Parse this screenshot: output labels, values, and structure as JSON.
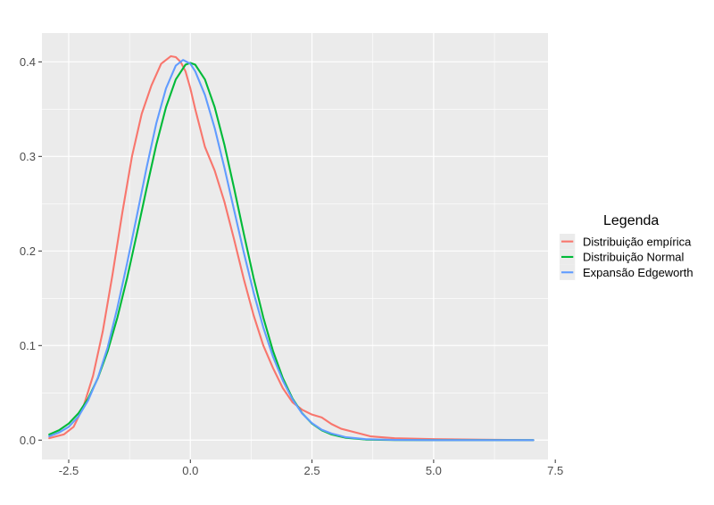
{
  "chart_data": {
    "type": "line",
    "title": "",
    "xlabel": "",
    "ylabel": "",
    "xlim": [
      -3.05,
      7.35
    ],
    "ylim": [
      -0.0205,
      0.4305
    ],
    "x_ticks": [
      -2.5,
      0.0,
      2.5,
      5.0,
      7.5
    ],
    "x_tick_labels": [
      "-2.5",
      "0.0",
      "2.5",
      "5.0",
      "7.5"
    ],
    "y_ticks": [
      0.0,
      0.1,
      0.2,
      0.3,
      0.4
    ],
    "y_tick_labels": [
      "0.0",
      "0.1",
      "0.2",
      "0.3",
      "0.4"
    ],
    "grid": true,
    "legend": {
      "title": "Legenda",
      "position": "right"
    },
    "series": [
      {
        "name": "Distribuição empírica",
        "color": "#F8766D",
        "points": [
          [
            -2.9,
            0.002
          ],
          [
            -2.6,
            0.006
          ],
          [
            -2.4,
            0.014
          ],
          [
            -2.2,
            0.035
          ],
          [
            -2.0,
            0.068
          ],
          [
            -1.8,
            0.115
          ],
          [
            -1.6,
            0.175
          ],
          [
            -1.4,
            0.24
          ],
          [
            -1.2,
            0.3
          ],
          [
            -1.0,
            0.345
          ],
          [
            -0.8,
            0.375
          ],
          [
            -0.6,
            0.398
          ],
          [
            -0.4,
            0.406
          ],
          [
            -0.3,
            0.405
          ],
          [
            -0.2,
            0.4
          ],
          [
            -0.1,
            0.39
          ],
          [
            0.0,
            0.372
          ],
          [
            0.1,
            0.35
          ],
          [
            0.2,
            0.33
          ],
          [
            0.3,
            0.31
          ],
          [
            0.5,
            0.285
          ],
          [
            0.7,
            0.252
          ],
          [
            0.9,
            0.212
          ],
          [
            1.1,
            0.17
          ],
          [
            1.3,
            0.132
          ],
          [
            1.5,
            0.1
          ],
          [
            1.7,
            0.076
          ],
          [
            1.9,
            0.055
          ],
          [
            2.1,
            0.04
          ],
          [
            2.3,
            0.032
          ],
          [
            2.5,
            0.027
          ],
          [
            2.7,
            0.024
          ],
          [
            2.9,
            0.017
          ],
          [
            3.1,
            0.012
          ],
          [
            3.4,
            0.008
          ],
          [
            3.7,
            0.004
          ],
          [
            4.2,
            0.002
          ],
          [
            5.0,
            0.001
          ],
          [
            6.0,
            0.0005
          ],
          [
            7.05,
            0.0
          ]
        ]
      },
      {
        "name": "Distribuição Normal",
        "color": "#00BA38",
        "points": [
          [
            -2.9,
            0.006
          ],
          [
            -2.7,
            0.0104
          ],
          [
            -2.5,
            0.0175
          ],
          [
            -2.3,
            0.0283
          ],
          [
            -2.1,
            0.044
          ],
          [
            -1.9,
            0.0656
          ],
          [
            -1.7,
            0.094
          ],
          [
            -1.5,
            0.1295
          ],
          [
            -1.3,
            0.1714
          ],
          [
            -1.1,
            0.2179
          ],
          [
            -0.9,
            0.2661
          ],
          [
            -0.7,
            0.3123
          ],
          [
            -0.5,
            0.3521
          ],
          [
            -0.3,
            0.3814
          ],
          [
            -0.1,
            0.397
          ],
          [
            0.0,
            0.3989
          ],
          [
            0.1,
            0.397
          ],
          [
            0.3,
            0.3814
          ],
          [
            0.5,
            0.3521
          ],
          [
            0.7,
            0.3123
          ],
          [
            0.9,
            0.2661
          ],
          [
            1.1,
            0.2179
          ],
          [
            1.3,
            0.1714
          ],
          [
            1.5,
            0.1295
          ],
          [
            1.7,
            0.094
          ],
          [
            1.9,
            0.0656
          ],
          [
            2.1,
            0.044
          ],
          [
            2.3,
            0.0283
          ],
          [
            2.5,
            0.0175
          ],
          [
            2.7,
            0.0104
          ],
          [
            2.9,
            0.006
          ],
          [
            3.2,
            0.0024
          ],
          [
            3.6,
            0.0006
          ],
          [
            4.2,
            0.0001
          ],
          [
            5.0,
            0.0
          ],
          [
            6.0,
            0.0
          ],
          [
            7.05,
            0.0
          ]
        ]
      },
      {
        "name": "Expansão Edgeworth",
        "color": "#619CFF",
        "points": [
          [
            -2.9,
            0.004
          ],
          [
            -2.7,
            0.008
          ],
          [
            -2.5,
            0.014
          ],
          [
            -2.3,
            0.025
          ],
          [
            -2.1,
            0.042
          ],
          [
            -1.9,
            0.066
          ],
          [
            -1.7,
            0.098
          ],
          [
            -1.5,
            0.14
          ],
          [
            -1.3,
            0.187
          ],
          [
            -1.1,
            0.237
          ],
          [
            -0.9,
            0.288
          ],
          [
            -0.7,
            0.335
          ],
          [
            -0.5,
            0.372
          ],
          [
            -0.3,
            0.396
          ],
          [
            -0.15,
            0.402
          ],
          [
            0.0,
            0.398
          ],
          [
            0.1,
            0.39
          ],
          [
            0.3,
            0.365
          ],
          [
            0.5,
            0.33
          ],
          [
            0.7,
            0.288
          ],
          [
            0.9,
            0.243
          ],
          [
            1.1,
            0.198
          ],
          [
            1.3,
            0.156
          ],
          [
            1.5,
            0.119
          ],
          [
            1.7,
            0.088
          ],
          [
            1.9,
            0.063
          ],
          [
            2.1,
            0.043
          ],
          [
            2.3,
            0.028
          ],
          [
            2.5,
            0.018
          ],
          [
            2.7,
            0.011
          ],
          [
            2.9,
            0.007
          ],
          [
            3.2,
            0.003
          ],
          [
            3.6,
            0.001
          ],
          [
            4.2,
            0.0002
          ],
          [
            5.0,
            0.0
          ],
          [
            6.0,
            0.0
          ],
          [
            7.05,
            0.0
          ]
        ]
      }
    ]
  }
}
